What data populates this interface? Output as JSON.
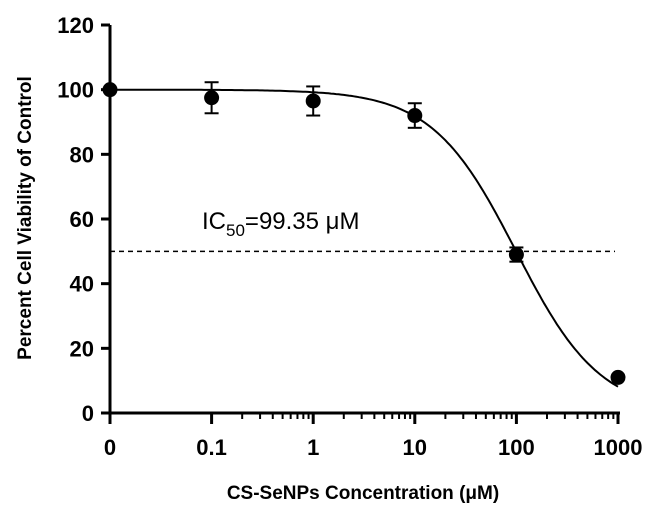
{
  "chart_data": {
    "type": "scatter",
    "title": "",
    "xlabel": "CS-SeNPs Concentration (μM)",
    "ylabel": "Percent Cell Viability of Control",
    "x_scale": "log",
    "x_ticks": [
      "0",
      "0.1",
      "1",
      "10",
      "100",
      "1000"
    ],
    "y_ticks": [
      "0",
      "20",
      "40",
      "60",
      "80",
      "100",
      "120"
    ],
    "ylim": [
      0,
      120
    ],
    "grid": false,
    "points": [
      {
        "x": "0",
        "y": 100,
        "err": 0
      },
      {
        "x": "0.1",
        "y": 97.5,
        "err": 4.8
      },
      {
        "x": "1",
        "y": 96.5,
        "err": 4.5
      },
      {
        "x": "10",
        "y": 92,
        "err": 3.8
      },
      {
        "x": "100",
        "y": 49,
        "err": 2.2
      },
      {
        "x": "1000",
        "y": 11,
        "err": 0
      }
    ],
    "fit_curve": {
      "top": 100,
      "bottom": 0,
      "ic50": 99.35,
      "hill": 1.05
    },
    "reference_line": {
      "y": 50,
      "style": "dashed"
    },
    "annotation": {
      "base": "IC",
      "subscript": "50",
      "rest": "=99.35 μM"
    },
    "colors": {
      "marker": "#000000",
      "line": "#000000"
    }
  }
}
